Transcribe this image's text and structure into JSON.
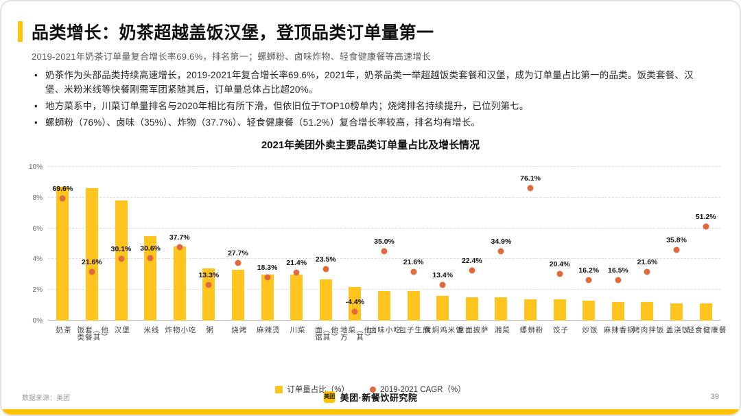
{
  "slide": {
    "title": "品类增长：奶茶超越盖饭汉堡，登顶品类订单量第一",
    "subtitle": "2019-2021年奶茶订单量复合增长率69.6%，排名第一；螺蛳粉、卤味炸物、轻食健康餐等高速增长",
    "bullets": [
      "奶茶作为头部品类持续高速增长，2019-2021年复合增长率69.6%，2021年，奶茶品类一举超越饭类套餐和汉堡，成为订单量占比第一的品类。饭类套餐、汉堡、米粉米线等快餐刚需军团紧随其后，订单量总体占比超20%。",
      "地方菜系中，川菜订单量排名与2020年相比有所下滑，但依旧位于TOP10榜单内；烧烤排名持续提升，已位列第七。",
      "螺蛳粉（76%）、卤味（35%）、炸物（37.7%）、轻食健康餐（51.2%）复合增长率较高，排名均有增长。"
    ],
    "footer": {
      "source": "数据来源：美团",
      "logo_text": "美团",
      "brand": "美团·新餐饮研究院",
      "page": "39"
    }
  },
  "colors": {
    "accent_yellow": "#FFC300",
    "bar_yellow": "#FFC41E",
    "dot_orange": "#E06A3E"
  },
  "chart_data": {
    "type": "combo-bar-scatter",
    "title": "2021年美团外卖主要品类订单量占比及增长情况",
    "categories": [
      "奶茶",
      "饭类套餐（其他）",
      "汉堡",
      "米线",
      "炸物小吃",
      "粥",
      "烧烤",
      "麻辣烫",
      "川菜",
      "面馆（其他）",
      "地方菜（其他）",
      "卤味小吃",
      "包子生煎",
      "黄焖鸡米饭",
      "意面披萨",
      "湘菜",
      "螺蛳粉",
      "饺子",
      "炒饭",
      "麻辣香锅",
      "烤肉拌饭",
      "盖浇饭",
      "轻食健康餐"
    ],
    "series": [
      {
        "name": "订单量占比（%）",
        "type": "bar",
        "values": [
          8.7,
          8.6,
          7.8,
          5.5,
          4.8,
          3.4,
          3.3,
          3.0,
          3.0,
          2.7,
          2.2,
          1.9,
          1.9,
          1.6,
          1.5,
          1.5,
          1.4,
          1.4,
          1.3,
          1.2,
          1.2,
          1.1,
          1.1
        ]
      },
      {
        "name": "2019-2021 CAGR（%）",
        "type": "scatter",
        "values": [
          69.6,
          21.6,
          30.1,
          30.6,
          37.7,
          13.3,
          27.7,
          18.3,
          21.4,
          23.5,
          -4.4,
          35.0,
          21.6,
          13.4,
          22.4,
          34.9,
          76.1,
          20.4,
          16.2,
          16.5,
          21.6,
          35.8,
          51.2
        ],
        "labels": [
          "69.6%",
          "21.6%",
          "30.1%",
          "30.6%",
          "37.7%",
          "13.3%",
          "27.7%",
          "18.3%",
          "21.4%",
          "23.5%",
          "-4.4%",
          "35.0%",
          "21.6%",
          "13.4%",
          "22.4%",
          "34.9%",
          "76.1%",
          "20.4%",
          "16.2%",
          "16.5%",
          "21.6%",
          "35.8%",
          "51.2%"
        ]
      }
    ],
    "y_axis": {
      "min": 0,
      "max": 10,
      "ticks": [
        {
          "value": 0,
          "label": "0%"
        },
        {
          "value": 2,
          "label": "2%"
        },
        {
          "value": 4,
          "label": "4%"
        },
        {
          "value": 6,
          "label": "6%"
        },
        {
          "value": 8,
          "label": "8%"
        },
        {
          "value": 10,
          "label": "10%"
        }
      ]
    },
    "secondary_axis": {
      "min": -10,
      "max": 90,
      "visible": false
    },
    "legend": [
      {
        "label": "订单量占比（%）",
        "swatch": "square"
      },
      {
        "label": "2019-2021 CAGR（%）",
        "swatch": "dot"
      }
    ],
    "grid": "dashed-horizontal",
    "legend_position": "bottom-center"
  }
}
